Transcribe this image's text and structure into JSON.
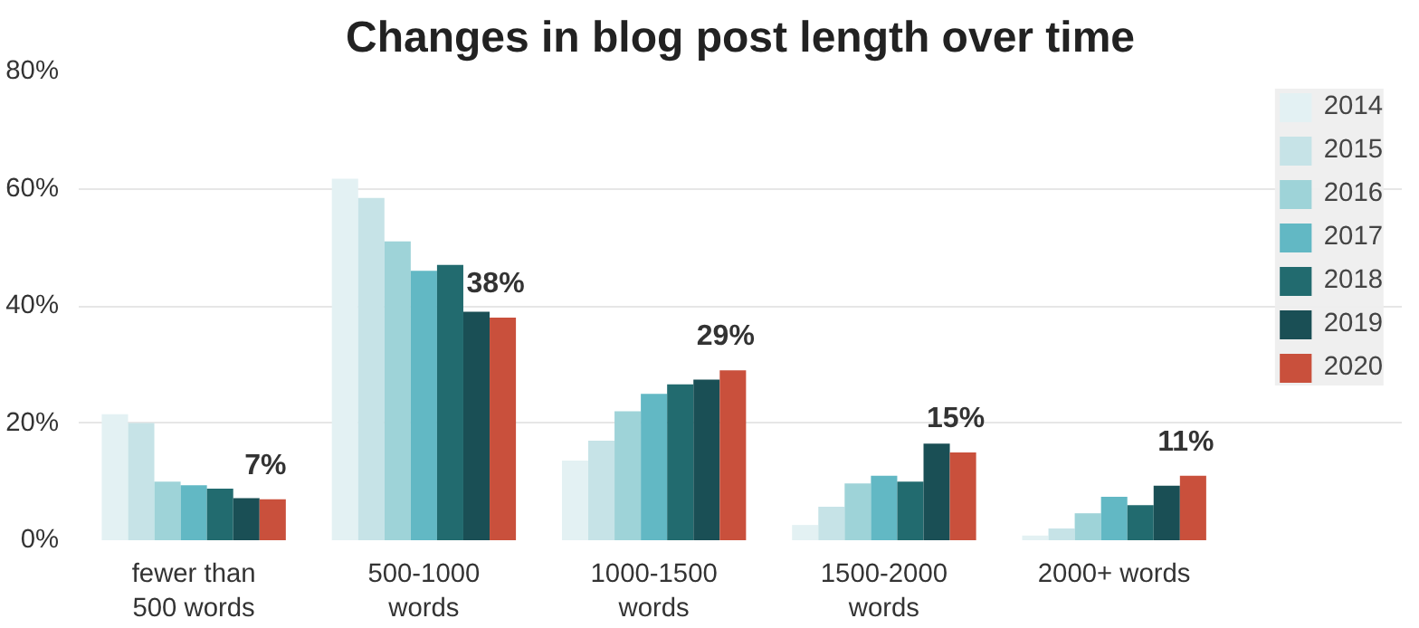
{
  "chart_data": {
    "type": "bar",
    "title": "Changes in blog post length over time",
    "categories": [
      "fewer than\n500 words",
      "500-1000\nwords",
      "1000-1500\nwords",
      "1500-2000\nwords",
      "2000+ words"
    ],
    "series": [
      {
        "name": "2014",
        "color": "#e3f1f3",
        "values": [
          21.5,
          61.7,
          13.6,
          2.6,
          0.8
        ]
      },
      {
        "name": "2015",
        "color": "#c6e3e7",
        "values": [
          20,
          58.4,
          17,
          5.7,
          2
        ]
      },
      {
        "name": "2016",
        "color": "#9ed3d8",
        "values": [
          10,
          51,
          22,
          9.7,
          4.6
        ]
      },
      {
        "name": "2017",
        "color": "#62b8c4",
        "values": [
          9.4,
          46,
          25,
          11,
          7.4
        ]
      },
      {
        "name": "2018",
        "color": "#226b6f",
        "values": [
          8.8,
          47,
          26.6,
          10,
          6
        ]
      },
      {
        "name": "2019",
        "color": "#1a4f55",
        "values": [
          7.2,
          39,
          27.4,
          16.5,
          9.3
        ]
      },
      {
        "name": "2020",
        "color": "#c9503c",
        "values": [
          7,
          38,
          29,
          15,
          11
        ],
        "value_labels": [
          "7%",
          "38%",
          "29%",
          "15%",
          "11%"
        ]
      }
    ],
    "ylim": [
      0,
      80
    ],
    "yticks": [
      {
        "value": 0,
        "label": "0%"
      },
      {
        "value": 20,
        "label": "20%"
      },
      {
        "value": 40,
        "label": "40%"
      },
      {
        "value": 60,
        "label": "60%"
      },
      {
        "value": 80,
        "label": "80%"
      }
    ],
    "grid": "y",
    "legend": "right"
  }
}
